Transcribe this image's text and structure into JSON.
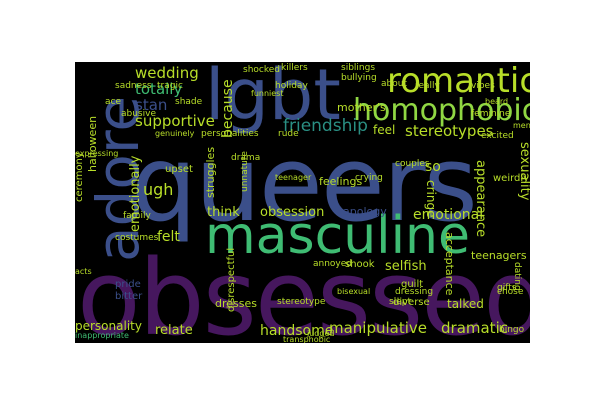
{
  "colors": {
    "background": "#000000",
    "page": "#ffffff",
    "purple": "#46175e",
    "indigo": "#3b4f8a",
    "teal": "#2a8f83",
    "green": "#3fbc73",
    "yellow_green": "#b8de29",
    "light_green": "#90d743"
  },
  "words": {
    "obsessed": "obsessed",
    "queers": "queers",
    "masculine": "masculine",
    "adore": "adore",
    "lgbt": "lgbt",
    "romantic": "romantic",
    "homophobic": "homophobic",
    "wedding": "wedding",
    "totally": "totally",
    "stan": "stan",
    "supportive": "supportive",
    "friendship": "friendship",
    "stereotypes": "stereotypes",
    "feel": "feel",
    "ugh": "ugh",
    "think": "think",
    "obsession": "obsession",
    "emotional": "emotional",
    "felt": "felt",
    "feelings": "feelings",
    "handsome": "handsome",
    "manipulative": "manipulative",
    "dramatic": "dramatic",
    "relate": "relate",
    "personality": "personality",
    "selfish": "selfish",
    "shook": "shook",
    "teenagers": "teenagers",
    "talked": "talked",
    "diverse": "diverse",
    "sexuality": "sexuality",
    "appearance": "appearance",
    "so": "so",
    "apology": "apology",
    "dresses": "dresses",
    "stereotype": "stereotype",
    "cringe": "cringe",
    "gifts": "gifts",
    "bingo": "bingo",
    "emotionally": "emotionally",
    "because": "because",
    "killers": "killers",
    "siblings": "siblings",
    "bullying": "bullying",
    "shocked": "shocked",
    "annoyed": "annoyed",
    "halloween": "halloween",
    "costumes": "costumes",
    "guilt": "guilt",
    "chose": "chose",
    "weirdly": "weirdly",
    "mothers": "mother's",
    "personalities": "personalities",
    "struggles": "struggles",
    "disrespectful": "disrespectful",
    "inappropriate": "inappropriate",
    "sadness": "sadness",
    "rude": "rude",
    "drama": "drama",
    "upset": "upset",
    "slept": "slept",
    "bitter": "bitter",
    "pride": "pride",
    "abusive": "abusive",
    "genuinely": "genuinely",
    "judged": "judged",
    "acceptance": "acceptance",
    "dating": "dating",
    "family": "family",
    "ceremony": "ceremony",
    "shade": "shade",
    "tragic": "tragic",
    "dressing": "dressing",
    "couples": "couples",
    "crying": "crying",
    "excited": "excited",
    "really": "really",
    "about": "about",
    "vibes": "vibes",
    "acts": "acts",
    "ace": "ace",
    "holiday": "holiday",
    "funniest": "funniest",
    "feminine": "feminine",
    "teenager": "teenager",
    "bisexual": "bisexual",
    "expressing": "expressing",
    "unnature": "unnature",
    "transphobic": "transphobic",
    "beard": "beard",
    "mens": "men's"
  }
}
